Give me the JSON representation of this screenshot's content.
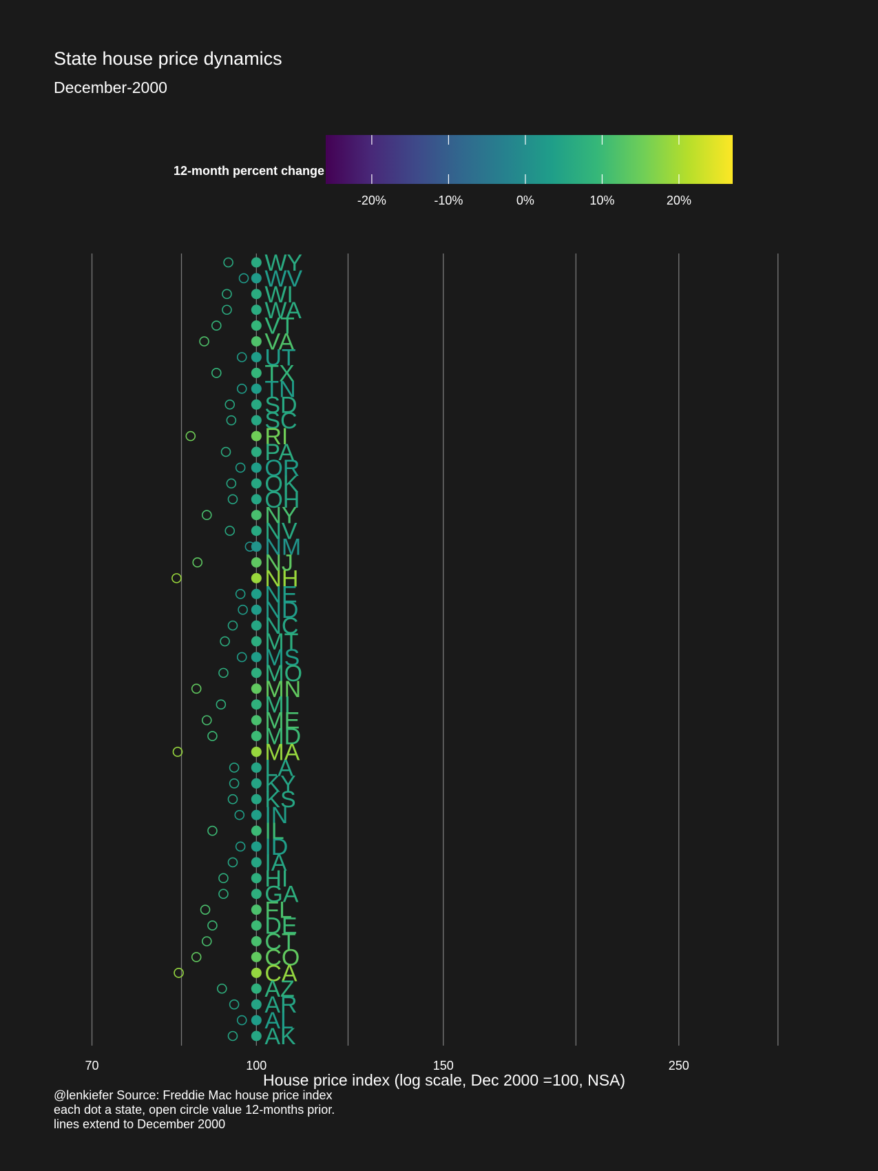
{
  "header": {
    "title": "State house price dynamics",
    "subtitle": "December-2000"
  },
  "caption": {
    "lines": [
      "@lenkiefer Source: Freddie Mac house price index",
      "each dot a state, open circle value 12-months prior.",
      "lines extend to December 2000"
    ]
  },
  "colors": {
    "background": "#1a1a1a",
    "gridline": "#7a7a7a",
    "text": "#ffffff",
    "viridis": [
      "#440154",
      "#482878",
      "#3e4989",
      "#31688e",
      "#26828e",
      "#1f9e89",
      "#35b779",
      "#6ece58",
      "#b5de2b",
      "#fde725"
    ]
  },
  "chart_data": {
    "type": "scatter",
    "title": "State house price dynamics",
    "subtitle": "December-2000",
    "xlabel": "House price index (log scale, Dec 2000 =100, NSA)",
    "x_scale": "log",
    "x_ticks": [
      70,
      100,
      150,
      250
    ],
    "x_tick_labels": [
      "70",
      "100",
      "150",
      "250"
    ],
    "x_minor_gridlines": [
      85,
      122,
      200,
      310
    ],
    "xlim": [
      63,
      350
    ],
    "grid": true,
    "legend": {
      "title": "12-month percent change",
      "position": "top",
      "type": "colorbar",
      "palette": "viridis",
      "range": [
        -26,
        27
      ],
      "ticks": [
        -20,
        -10,
        0,
        10,
        20
      ],
      "tick_labels": [
        "-20%",
        "-10%",
        "0%",
        "10%",
        "20%"
      ]
    },
    "series": [
      {
        "name": "Dec 2000",
        "marker": "filled circle"
      },
      {
        "name": "12 months prior",
        "marker": "open circle"
      }
    ],
    "states": [
      {
        "state": "WY",
        "hpi": 100,
        "hpi_12m_prior": 94.1
      },
      {
        "state": "WV",
        "hpi": 100,
        "hpi_12m_prior": 97.3
      },
      {
        "state": "WI",
        "hpi": 100,
        "hpi_12m_prior": 93.8
      },
      {
        "state": "WA",
        "hpi": 100,
        "hpi_12m_prior": 93.8
      },
      {
        "state": "VT",
        "hpi": 100,
        "hpi_12m_prior": 91.7
      },
      {
        "state": "VA",
        "hpi": 100,
        "hpi_12m_prior": 89.3
      },
      {
        "state": "UT",
        "hpi": 100,
        "hpi_12m_prior": 96.9
      },
      {
        "state": "TX",
        "hpi": 100,
        "hpi_12m_prior": 91.7
      },
      {
        "state": "TN",
        "hpi": 100,
        "hpi_12m_prior": 96.9
      },
      {
        "state": "SD",
        "hpi": 100,
        "hpi_12m_prior": 94.4
      },
      {
        "state": "SC",
        "hpi": 100,
        "hpi_12m_prior": 94.7
      },
      {
        "state": "RI",
        "hpi": 100,
        "hpi_12m_prior": 86.7
      },
      {
        "state": "PA",
        "hpi": 100,
        "hpi_12m_prior": 93.6
      },
      {
        "state": "OR",
        "hpi": 100,
        "hpi_12m_prior": 96.6
      },
      {
        "state": "OK",
        "hpi": 100,
        "hpi_12m_prior": 94.7
      },
      {
        "state": "OH",
        "hpi": 100,
        "hpi_12m_prior": 95.0
      },
      {
        "state": "NY",
        "hpi": 100,
        "hpi_12m_prior": 89.8
      },
      {
        "state": "NV",
        "hpi": 100,
        "hpi_12m_prior": 94.4
      },
      {
        "state": "NM",
        "hpi": 100,
        "hpi_12m_prior": 98.6
      },
      {
        "state": "NJ",
        "hpi": 100,
        "hpi_12m_prior": 88.0
      },
      {
        "state": "NH",
        "hpi": 100,
        "hpi_12m_prior": 84.1
      },
      {
        "state": "NE",
        "hpi": 100,
        "hpi_12m_prior": 96.6
      },
      {
        "state": "ND",
        "hpi": 100,
        "hpi_12m_prior": 97.1
      },
      {
        "state": "NC",
        "hpi": 100,
        "hpi_12m_prior": 95.0
      },
      {
        "state": "MT",
        "hpi": 100,
        "hpi_12m_prior": 93.4
      },
      {
        "state": "MS",
        "hpi": 100,
        "hpi_12m_prior": 96.9
      },
      {
        "state": "MO",
        "hpi": 100,
        "hpi_12m_prior": 93.1
      },
      {
        "state": "MN",
        "hpi": 100,
        "hpi_12m_prior": 87.8
      },
      {
        "state": "MI",
        "hpi": 100,
        "hpi_12m_prior": 92.6
      },
      {
        "state": "ME",
        "hpi": 100,
        "hpi_12m_prior": 89.8
      },
      {
        "state": "MD",
        "hpi": 100,
        "hpi_12m_prior": 90.9
      },
      {
        "state": "MA",
        "hpi": 100,
        "hpi_12m_prior": 84.3
      },
      {
        "state": "LA",
        "hpi": 100,
        "hpi_12m_prior": 95.3
      },
      {
        "state": "KY",
        "hpi": 100,
        "hpi_12m_prior": 95.3
      },
      {
        "state": "KS",
        "hpi": 100,
        "hpi_12m_prior": 95.0
      },
      {
        "state": "IN",
        "hpi": 100,
        "hpi_12m_prior": 96.4
      },
      {
        "state": "IL",
        "hpi": 100,
        "hpi_12m_prior": 90.9
      },
      {
        "state": "ID",
        "hpi": 100,
        "hpi_12m_prior": 96.6
      },
      {
        "state": "IA",
        "hpi": 100,
        "hpi_12m_prior": 95.0
      },
      {
        "state": "HI",
        "hpi": 100,
        "hpi_12m_prior": 93.1
      },
      {
        "state": "GA",
        "hpi": 100,
        "hpi_12m_prior": 93.1
      },
      {
        "state": "FL",
        "hpi": 100,
        "hpi_12m_prior": 89.5
      },
      {
        "state": "DE",
        "hpi": 100,
        "hpi_12m_prior": 90.9
      },
      {
        "state": "CT",
        "hpi": 100,
        "hpi_12m_prior": 89.8
      },
      {
        "state": "CO",
        "hpi": 100,
        "hpi_12m_prior": 87.8
      },
      {
        "state": "CA",
        "hpi": 100,
        "hpi_12m_prior": 84.5
      },
      {
        "state": "AZ",
        "hpi": 100,
        "hpi_12m_prior": 92.8
      },
      {
        "state": "AR",
        "hpi": 100,
        "hpi_12m_prior": 95.3
      },
      {
        "state": "AL",
        "hpi": 100,
        "hpi_12m_prior": 96.9
      },
      {
        "state": "AK",
        "hpi": 100,
        "hpi_12m_prior": 95.0
      }
    ]
  }
}
